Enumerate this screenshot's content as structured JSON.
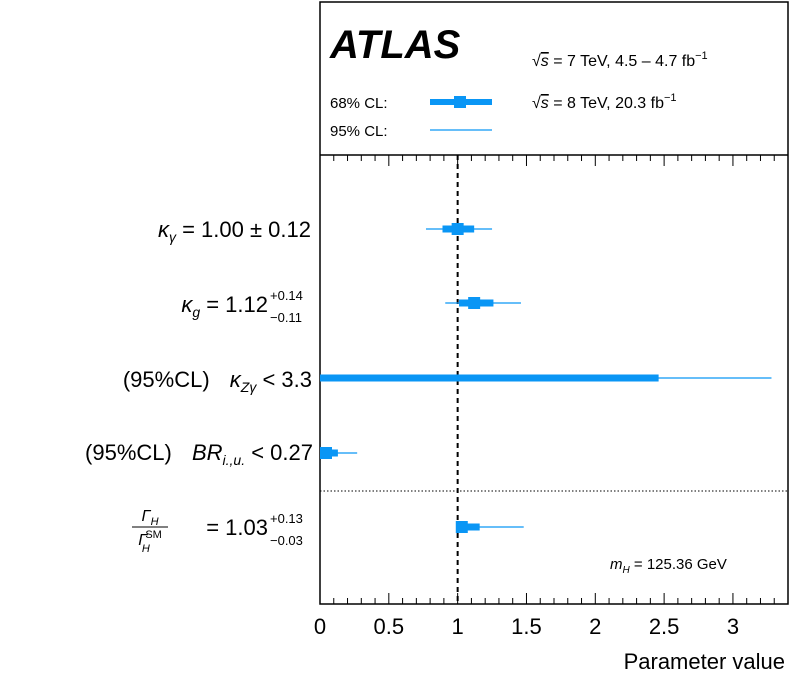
{
  "chart_data": {
    "type": "forest",
    "experiment": "ATLAS",
    "energy_lines": [
      {
        "sqrt": "s",
        "text": " = 7 TeV, 4.5 – 4.7 fb",
        "sup": "−1"
      },
      {
        "sqrt": "s",
        "text": " = 8 TeV, 20.3 fb",
        "sup": "−1"
      }
    ],
    "legend": [
      {
        "label": "68% CL:",
        "style": "thick"
      },
      {
        "label": "95% CL:",
        "style": "thin"
      }
    ],
    "mass_label": {
      "sym": "m",
      "sub": "H",
      "text": " = 125.36 GeV"
    },
    "xlabel": "Parameter value",
    "xlim": [
      0,
      3.4
    ],
    "xticks": [
      "0",
      "0.5",
      "1",
      "1.5",
      "2",
      "2.5",
      "3"
    ],
    "xtick_values": [
      0,
      0.5,
      1,
      1.5,
      2,
      2.5,
      3
    ],
    "reference_line": 1,
    "colors": {
      "bar": "#0a96f5",
      "frame": "#000000"
    },
    "parameters": [
      {
        "name": "kappa_gamma",
        "central": 1.0,
        "ci68": [
          0.89,
          1.12
        ],
        "ci95": [
          0.77,
          1.25
        ],
        "label": {
          "prefix": "",
          "sym": "κ",
          "sub": "γ",
          "rel": " = 1.00 ± 0.12",
          "up": "",
          "down": ""
        }
      },
      {
        "name": "kappa_g",
        "central": 1.12,
        "ci68": [
          1.01,
          1.26
        ],
        "ci95": [
          0.91,
          1.46
        ],
        "label": {
          "prefix": "",
          "sym": "κ",
          "sub": "g",
          "rel": " = 1.12",
          "up": "+0.14",
          "down": "−0.11"
        }
      },
      {
        "name": "kappa_Zgamma",
        "central": null,
        "ci68": [
          0,
          2.46
        ],
        "ci95": [
          0,
          3.28
        ],
        "label": {
          "prefix": "(95%CL)",
          "sym": "κ",
          "sub": "Zγ",
          "rel": " < 3.3",
          "up": "",
          "down": ""
        }
      },
      {
        "name": "BR_iu",
        "central": 0,
        "ci68": [
          0,
          0.13
        ],
        "ci95": [
          0,
          0.27
        ],
        "label": {
          "prefix": "(95%CL)",
          "sym": "BR",
          "sub": "i.,u.",
          "rel": " < 0.27",
          "up": "",
          "down": ""
        }
      },
      {
        "name": "Gamma_ratio",
        "central": 1.03,
        "ci68": [
          1.0,
          1.16
        ],
        "ci95": [
          1.0,
          1.48
        ],
        "label": {
          "prefix": "",
          "sym": "Γ",
          "sub": "H",
          "rel": " = 1.03",
          "up": "+0.13",
          "down": "−0.03",
          "den_sym": "Γ",
          "den_sub": "H",
          "den_sup": "SM"
        }
      }
    ]
  }
}
